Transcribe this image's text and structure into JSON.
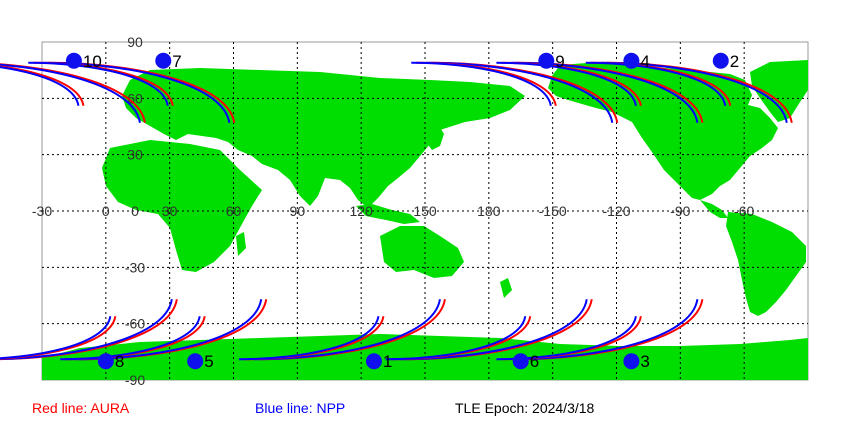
{
  "map": {
    "lat_labels": [
      "90",
      "60",
      "30",
      "0",
      "-30",
      "-60",
      "-90"
    ],
    "lon_labels": [
      "-30",
      "0",
      "30",
      "60",
      "90",
      "120",
      "150",
      "180",
      "-150",
      "-120",
      "-90",
      "-60"
    ],
    "colors": {
      "land": "#00dd00",
      "ocean": "#ffffff",
      "aura": "#ff0000",
      "npp": "#0000ff",
      "marker": "#1010ee"
    },
    "passes": [
      {
        "label": "10",
        "lon": -15.0,
        "lat": 80
      },
      {
        "label": "7",
        "lon": 27.0,
        "lat": 80
      },
      {
        "label": "9",
        "lon": -153.0,
        "lat": 80
      },
      {
        "label": "4",
        "lon": -113.0,
        "lat": 80
      },
      {
        "label": "2",
        "lon": -71.0,
        "lat": 80
      },
      {
        "label": "8",
        "lon": 0.0,
        "lat": -80
      },
      {
        "label": "5",
        "lon": 42.0,
        "lat": -80
      },
      {
        "label": "1",
        "lon": 126.0,
        "lat": -80
      },
      {
        "label": "6",
        "lon": -165.0,
        "lat": -80
      },
      {
        "label": "3",
        "lon": -113.0,
        "lat": -80
      }
    ]
  },
  "legend": {
    "aura": "Red line: AURA",
    "npp": "Blue line: NPP",
    "epoch": "TLE Epoch: 2024/3/18"
  }
}
